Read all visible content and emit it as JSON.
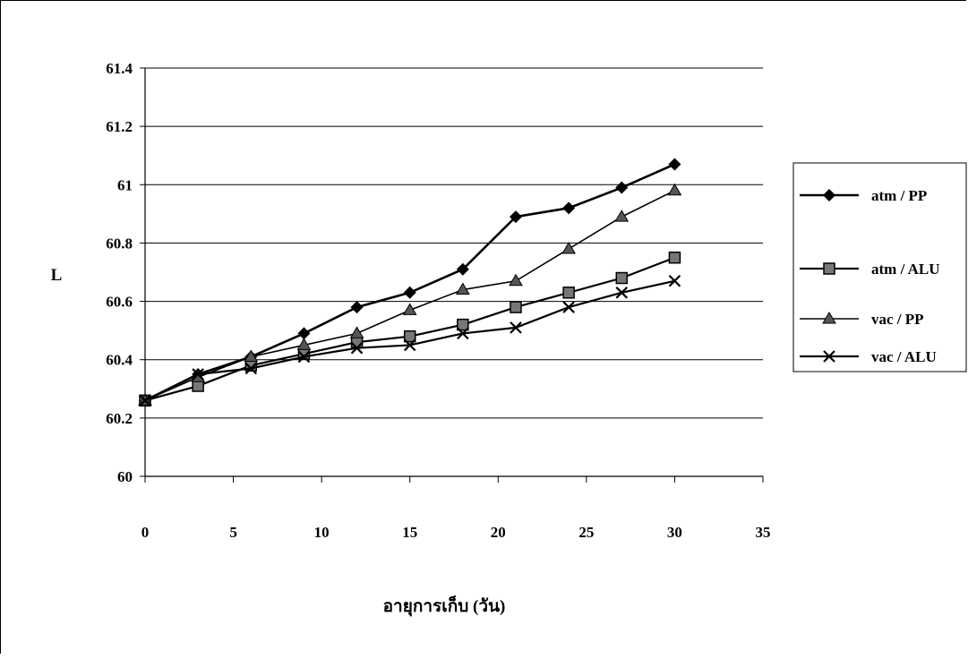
{
  "chart_data": {
    "type": "line",
    "title": "",
    "xlabel": "อายุการเก็บ (วัน)",
    "ylabel": "L",
    "xlim": [
      0,
      35
    ],
    "ylim": [
      60,
      61.4
    ],
    "x_ticks": [
      "0",
      "5",
      "10",
      "15",
      "20",
      "25",
      "30",
      "35"
    ],
    "y_ticks": [
      "60",
      "60.2",
      "60.4",
      "60.6",
      "60.8",
      "61",
      "61.2",
      "61.4"
    ],
    "grid": "horizontal",
    "legend_position": "right",
    "x": [
      0,
      3,
      6,
      9,
      12,
      15,
      18,
      21,
      24,
      27,
      30
    ],
    "series": [
      {
        "name": "atm / PP",
        "marker": "diamond",
        "color": "#000000",
        "values": [
          60.26,
          60.35,
          60.41,
          60.49,
          60.58,
          60.63,
          60.71,
          60.89,
          60.92,
          60.99,
          61.07
        ]
      },
      {
        "name": "atm / ALU",
        "marker": "square",
        "color": "#000000",
        "values": [
          60.26,
          60.31,
          60.38,
          60.42,
          60.46,
          60.48,
          60.52,
          60.58,
          60.63,
          60.68,
          60.75
        ]
      },
      {
        "name": "vac / PP",
        "marker": "triangle",
        "color": "#000000",
        "values": [
          60.26,
          60.34,
          60.41,
          60.45,
          60.49,
          60.57,
          60.64,
          60.67,
          60.78,
          60.89,
          60.98
        ]
      },
      {
        "name": "vac / ALU",
        "marker": "x",
        "color": "#000000",
        "values": [
          60.26,
          60.35,
          60.37,
          60.41,
          60.44,
          60.45,
          60.49,
          60.51,
          60.58,
          60.63,
          60.67
        ]
      }
    ]
  }
}
